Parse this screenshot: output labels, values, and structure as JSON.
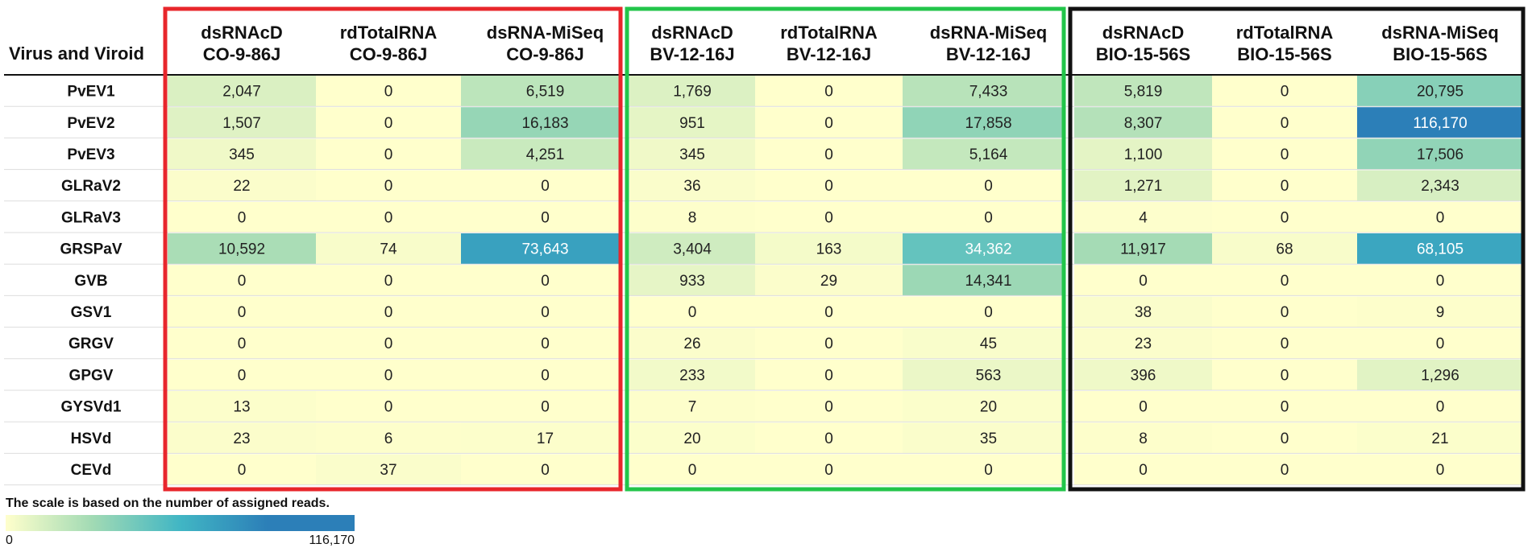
{
  "chart_data": {
    "type": "heatmap",
    "row_header": "Virus and Viroid",
    "columns": [
      [
        "dsRNAcD",
        "CO-9-86J"
      ],
      [
        "rdTotalRNA",
        "CO-9-86J"
      ],
      [
        "dsRNA-MiSeq",
        "CO-9-86J"
      ],
      [
        "dsRNAcD",
        "BV-12-16J"
      ],
      [
        "rdTotalRNA",
        "BV-12-16J"
      ],
      [
        "dsRNA-MiSeq",
        "BV-12-16J"
      ],
      [
        "dsRNAcD",
        "BIO-15-56S"
      ],
      [
        "rdTotalRNA",
        "BIO-15-56S"
      ],
      [
        "dsRNA-MiSeq",
        "BIO-15-56S"
      ]
    ],
    "rows": [
      "PvEV1",
      "PvEV2",
      "PvEV3",
      "GLRaV2",
      "GLRaV3",
      "GRSPaV",
      "GVB",
      "GSV1",
      "GRGV",
      "GPGV",
      "GYSVd1",
      "HSVd",
      "CEVd"
    ],
    "values": [
      [
        2047,
        0,
        6519,
        1769,
        0,
        7433,
        5819,
        0,
        20795
      ],
      [
        1507,
        0,
        16183,
        951,
        0,
        17858,
        8307,
        0,
        116170
      ],
      [
        345,
        0,
        4251,
        345,
        0,
        5164,
        1100,
        0,
        17506
      ],
      [
        22,
        0,
        0,
        36,
        0,
        0,
        1271,
        0,
        2343
      ],
      [
        0,
        0,
        0,
        8,
        0,
        0,
        4,
        0,
        0
      ],
      [
        10592,
        74,
        73643,
        3404,
        163,
        34362,
        11917,
        68,
        68105
      ],
      [
        0,
        0,
        0,
        933,
        29,
        14341,
        0,
        0,
        0
      ],
      [
        0,
        0,
        0,
        0,
        0,
        0,
        38,
        0,
        9
      ],
      [
        0,
        0,
        0,
        26,
        0,
        45,
        23,
        0,
        0
      ],
      [
        0,
        0,
        0,
        233,
        0,
        563,
        396,
        0,
        1296
      ],
      [
        13,
        0,
        0,
        7,
        0,
        20,
        0,
        0,
        0
      ],
      [
        23,
        6,
        17,
        20,
        0,
        35,
        8,
        0,
        21
      ],
      [
        0,
        37,
        0,
        0,
        0,
        0,
        0,
        0,
        0
      ]
    ],
    "color_scale": {
      "min": 0,
      "max": 116170,
      "min_label": "0",
      "max_label": "116,170",
      "colors": [
        "#ffffcc",
        "#a1dab4",
        "#41b6c4",
        "#2c7fb8"
      ]
    },
    "scale_note": "The scale is based on the number of assigned reads.",
    "groups": [
      {
        "sample": "CO-9-86J",
        "border_color": "#e8262b"
      },
      {
        "sample": "BV-12-16J",
        "border_color": "#22c54a"
      },
      {
        "sample": "BIO-15-56S",
        "border_color": "#111111"
      }
    ]
  }
}
